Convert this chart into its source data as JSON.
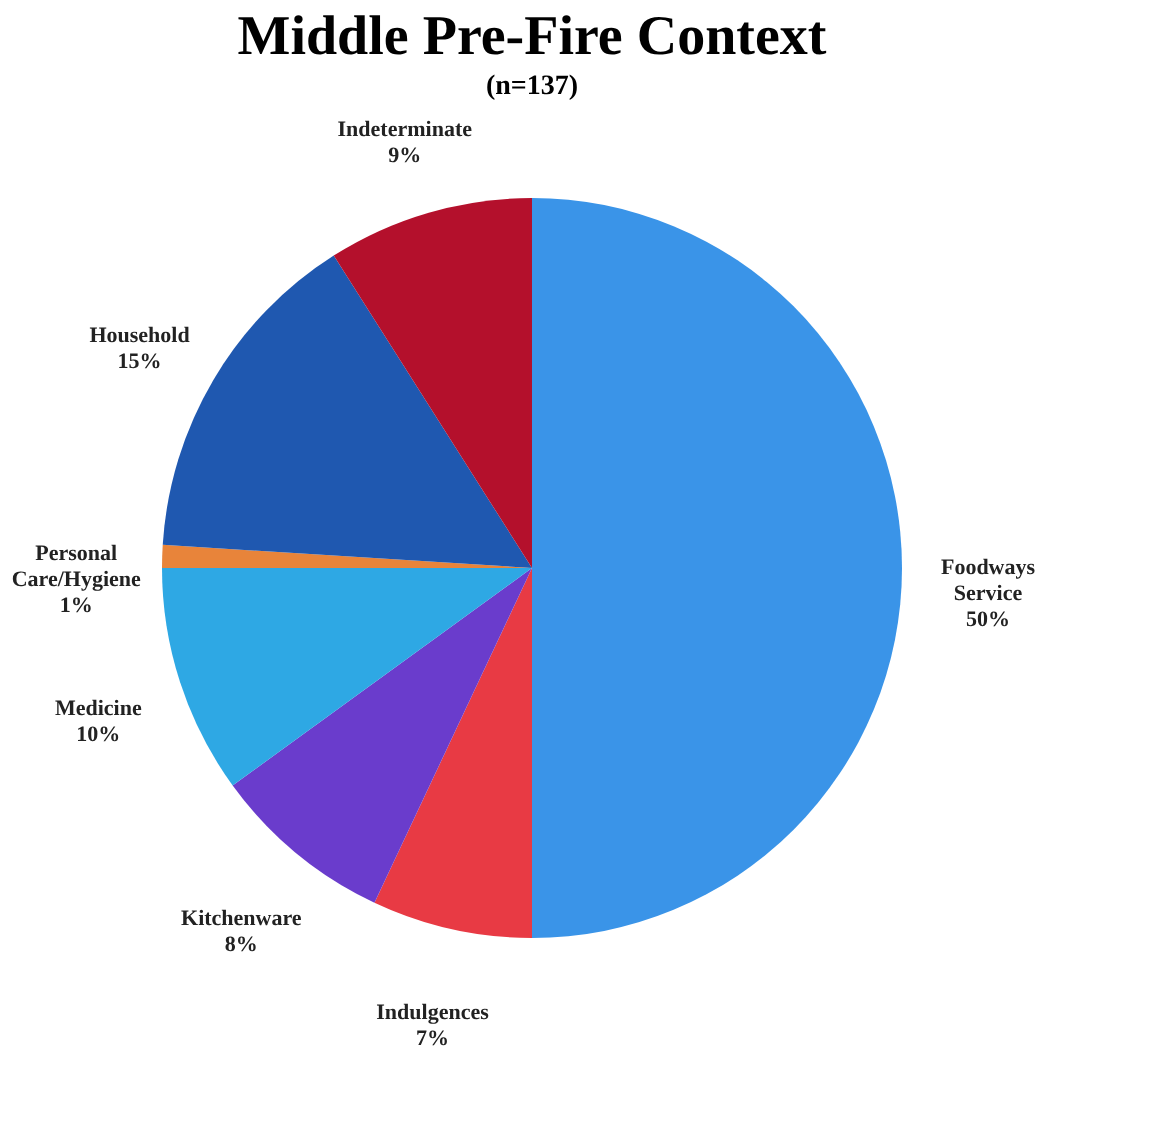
{
  "chart_data": {
    "type": "pie",
    "title": "Middle Pre-Fire Context",
    "subtitle": "(n=137)",
    "categories": [
      "Foodways Service",
      "Indulgences",
      "Kitchenware",
      "Medicine",
      "Personal Care/Hygiene",
      "Household",
      "Indeterminate"
    ],
    "values": [
      50,
      7,
      8,
      10,
      1,
      15,
      9
    ],
    "value_labels": [
      "50%",
      "7%",
      "8%",
      "10%",
      "1%",
      "15%",
      "9%"
    ],
    "colors": [
      "#3a94e8",
      "#e83a44",
      "#6a3ccc",
      "#2ea8e4",
      "#e8843a",
      "#1f58b0",
      "#b4102c"
    ],
    "legend": false
  }
}
